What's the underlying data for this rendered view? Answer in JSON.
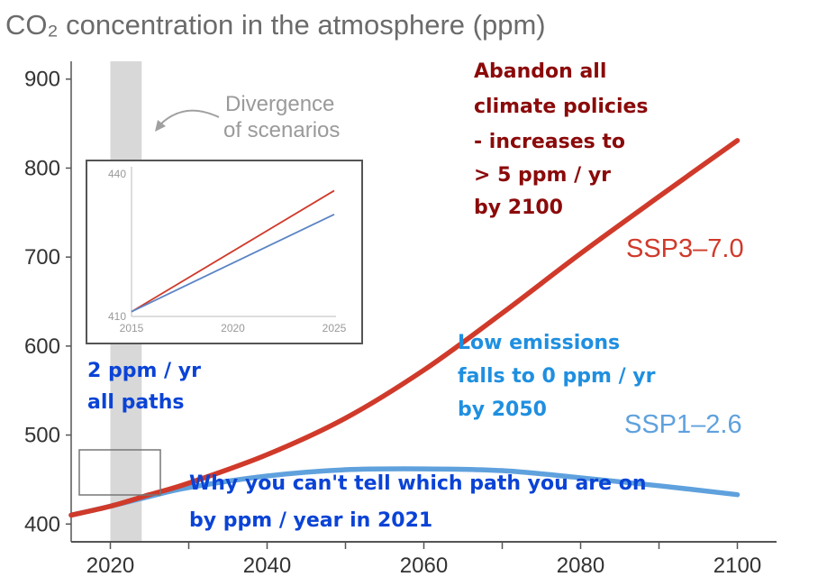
{
  "chart_data": {
    "type": "line",
    "title": "CO₂ concentration in the atmosphere (ppm)",
    "xlim": [
      2015,
      2105
    ],
    "ylim": [
      380,
      920
    ],
    "x_ticks": [
      2020,
      2040,
      2060,
      2080,
      2100
    ],
    "y_ticks": [
      400,
      500,
      600,
      700,
      800,
      900
    ],
    "grid": false,
    "series": [
      {
        "name": "SSP3–7.0",
        "color": "#d03a2a",
        "x": [
          2015,
          2020,
          2025,
          2030,
          2040,
          2050,
          2060,
          2070,
          2080,
          2090,
          2100
        ],
        "y": [
          410,
          420,
          433,
          446,
          478,
          519,
          573,
          637,
          704,
          768,
          831
        ]
      },
      {
        "name": "SSP1–2.6",
        "color": "#5fa1dd",
        "x": [
          2015,
          2020,
          2025,
          2030,
          2040,
          2050,
          2060,
          2070,
          2080,
          2090,
          2100
        ],
        "y": [
          410,
          420,
          431,
          441,
          454,
          461,
          462,
          460,
          452,
          443,
          433
        ]
      }
    ],
    "shaded_band": {
      "x": [
        2020,
        2024
      ],
      "color": "#d8d8d8"
    },
    "inset": {
      "xlim": [
        2015,
        2025
      ],
      "ylim": [
        410,
        440
      ],
      "x_ticks": [
        2015,
        2020,
        2025
      ],
      "y_ticks": [
        410,
        440
      ],
      "series": [
        {
          "color": "#d03a2a",
          "x": [
            2015,
            2025
          ],
          "y": [
            411,
            436.5
          ]
        },
        {
          "color": "#5b84c4",
          "x": [
            2015,
            2025
          ],
          "y": [
            411,
            431.5
          ]
        }
      ]
    },
    "annotations": {
      "divergence": [
        "Divergence",
        "of scenarios"
      ],
      "abandon": [
        "Abandon all",
        "climate policies",
        "- increases to",
        "> 5 ppm / yr",
        "by 2100"
      ],
      "low": [
        "Low emissions",
        "falls to 0 ppm / yr",
        "by 2050"
      ],
      "two_ppm": [
        "2 ppm / yr",
        "all paths"
      ],
      "why": [
        "Why you can't tell which path you are on",
        "by ppm / year in 2021"
      ]
    },
    "colors": {
      "dark_red": "#8b0a0a",
      "blue": "#0a43d6",
      "light_blue": "#1f8fe0"
    }
  }
}
